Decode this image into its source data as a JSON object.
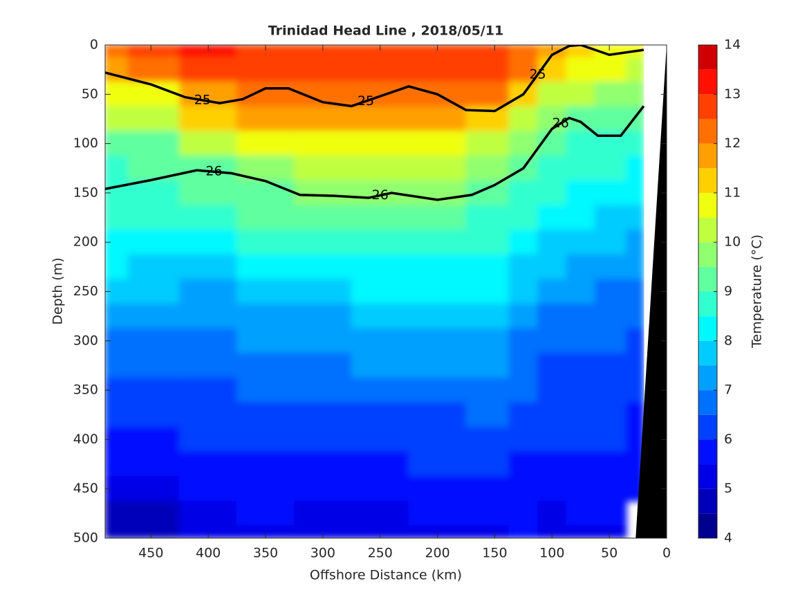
{
  "chart_data": {
    "type": "contourf",
    "title": "Trinidad Head Line , 2018/05/11",
    "x_label": "Offshore Distance (km)",
    "y_label": "Depth (m)",
    "colorbar_label": "Temperature (°C)",
    "xlim": [
      490,
      0
    ],
    "xticks": [
      450,
      400,
      350,
      300,
      250,
      200,
      150,
      100,
      50,
      0
    ],
    "ylim": [
      0,
      500
    ],
    "yticks": [
      0,
      50,
      100,
      150,
      200,
      250,
      300,
      350,
      400,
      450,
      500
    ],
    "clim": [
      4,
      14
    ],
    "cticks": [
      4,
      5,
      6,
      7,
      8,
      9,
      10,
      11,
      12,
      13,
      14
    ],
    "colors": [
      "#000090",
      "#0000bb",
      "#0000e6",
      "#0010ff",
      "#0040ff",
      "#0070ff",
      "#00a0ff",
      "#00ccff",
      "#00f8ff",
      "#30ffcf",
      "#60ff9f",
      "#90ff70",
      "#c0ff40",
      "#f0ff10",
      "#ffd000",
      "#ffa000",
      "#ff7000",
      "#ff4000",
      "#ff1000",
      "#d00000"
    ],
    "x": [
      490,
      450,
      400,
      350,
      300,
      250,
      200,
      150,
      125,
      100,
      75,
      50,
      20
    ],
    "depth": [
      0,
      25,
      50,
      75,
      100,
      125,
      150,
      175,
      200,
      225,
      250,
      275,
      300,
      325,
      350,
      375,
      400,
      425,
      450,
      475,
      500
    ],
    "values": [
      [
        12,
        12.5,
        13,
        12.5,
        12.5,
        12.5,
        12.5,
        12.5,
        12,
        11.5,
        11,
        10.5,
        10.5
      ],
      [
        11.5,
        12,
        12.5,
        12.5,
        12.5,
        12.5,
        12.5,
        12.5,
        12,
        11,
        10.5,
        10.5,
        10
      ],
      [
        10.5,
        10.5,
        11.5,
        12,
        12,
        12,
        12,
        12,
        11,
        10,
        10,
        9.5,
        9.5
      ],
      [
        10,
        10,
        11,
        11.5,
        11.5,
        11.5,
        11.5,
        11,
        10,
        9.5,
        9,
        9,
        9
      ],
      [
        9,
        9,
        10,
        10.5,
        10.5,
        10.5,
        10.5,
        10,
        9.5,
        9,
        8.5,
        8.5,
        8.5
      ],
      [
        8.5,
        9,
        9,
        9.5,
        10,
        10,
        10,
        9.5,
        9,
        8.5,
        8.5,
        8.5,
        8
      ],
      [
        8.5,
        8.5,
        9,
        9,
        9.5,
        9.5,
        9.5,
        9,
        8.5,
        8.5,
        8,
        8,
        8
      ],
      [
        8.5,
        8.5,
        8.5,
        9,
        9,
        9,
        9,
        8.5,
        8.5,
        8,
        8,
        7.5,
        7.5
      ],
      [
        8,
        8,
        8,
        8.5,
        8.5,
        8.5,
        8.5,
        8.5,
        8,
        7.5,
        7.5,
        7.5,
        7
      ],
      [
        8,
        7.5,
        7.5,
        8,
        8,
        8,
        8,
        8,
        7.5,
        7.5,
        7,
        7,
        7
      ],
      [
        7.5,
        7.5,
        7,
        7.5,
        7.5,
        8,
        8,
        8,
        7.5,
        7,
        7,
        6.5,
        6.5
      ],
      [
        7,
        7,
        7,
        7,
        7,
        7.5,
        7.5,
        7.5,
        7,
        6.5,
        6.5,
        6.5,
        6.5
      ],
      [
        6.5,
        6.5,
        6.5,
        7,
        7,
        7,
        7,
        7,
        6.5,
        6.5,
        6.5,
        6.5,
        6
      ],
      [
        6.5,
        6.5,
        6.5,
        6.5,
        6.5,
        7,
        7,
        7,
        6.5,
        6,
        6,
        6,
        6
      ],
      [
        6,
        6,
        6,
        6.5,
        6.5,
        6.5,
        6.5,
        6.5,
        6.5,
        6,
        6,
        6,
        6
      ],
      [
        6,
        6,
        6,
        6,
        6,
        6,
        6,
        6.5,
        6,
        6,
        6,
        6,
        5.5
      ],
      [
        5.5,
        5.5,
        6,
        6,
        6,
        6,
        6,
        6,
        6,
        6,
        6,
        6,
        5.5
      ],
      [
        5.5,
        5.5,
        5.5,
        5.5,
        5.5,
        5.5,
        6,
        6,
        5.5,
        5.5,
        5.5,
        5.5,
        5.5
      ],
      [
        5,
        5,
        5.5,
        5.5,
        5.5,
        5.5,
        5.5,
        5.5,
        5.5,
        5.5,
        5.5,
        5.5,
        5.5
      ],
      [
        4.5,
        4.5,
        5,
        5.5,
        5,
        5,
        5.5,
        5.5,
        5.5,
        5,
        5.5,
        5.5,
        null
      ],
      [
        4.5,
        4.5,
        5,
        5,
        5,
        5,
        5,
        5,
        5.5,
        5,
        5,
        5,
        null
      ]
    ],
    "contours": [
      {
        "level": 25,
        "x": [
          490,
          450,
          420,
          390,
          370,
          350,
          330,
          300,
          275,
          250,
          225,
          200,
          175,
          150,
          125,
          100,
          85,
          75,
          50,
          20
        ],
        "depths": [
          28,
          40,
          53,
          59,
          55,
          44,
          44,
          58,
          62,
          52,
          42,
          50,
          66,
          67,
          50,
          10,
          1,
          0,
          10,
          5
        ]
      },
      {
        "level": 26,
        "x": [
          490,
          450,
          410,
          380,
          350,
          320,
          290,
          260,
          240,
          200,
          170,
          150,
          125,
          100,
          85,
          75,
          60,
          40,
          20
        ],
        "depths": [
          146,
          137,
          127,
          130,
          138,
          152,
          153,
          155,
          150,
          157,
          152,
          142,
          125,
          85,
          74,
          78,
          92,
          92,
          62
        ]
      }
    ],
    "bathymetry": {
      "x": [
        0,
        27
      ],
      "depths": [
        0,
        500
      ]
    }
  }
}
